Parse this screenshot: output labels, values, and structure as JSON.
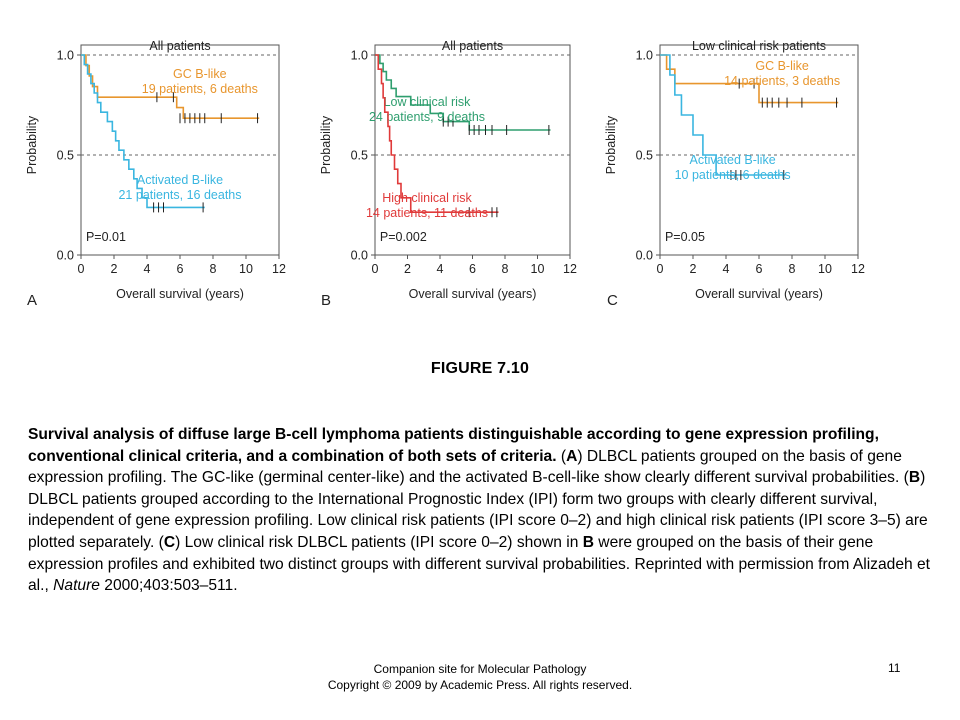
{
  "chart_data": [
    {
      "type": "line",
      "subtype": "kaplan-meier",
      "panel_letter": "A",
      "title": "All patients",
      "xlabel": "Overall survival (years)",
      "ylabel": "Probability",
      "xlim": [
        0,
        12
      ],
      "ylim": [
        0,
        1.0
      ],
      "xticks": [
        "0",
        "2",
        "4",
        "6",
        "8",
        "10",
        "12"
      ],
      "yticks": [
        "0.0",
        "0.5",
        "1.0"
      ],
      "pvalue": "P=0.01",
      "reference_lines_y": [
        0.5,
        1.0
      ],
      "series": [
        {
          "name": "GC B-like",
          "summary": "19 patients, 6 deaths",
          "color": "#E8962E",
          "steps": [
            [
              0,
              1.0
            ],
            [
              0.3,
              0.947
            ],
            [
              0.5,
              0.895
            ],
            [
              0.7,
              0.842
            ],
            [
              1.0,
              0.789
            ],
            [
              5.8,
              0.737
            ],
            [
              6.2,
              0.684
            ]
          ],
          "end_x": 10.8,
          "censored": [
            [
              4.6,
              0.789
            ],
            [
              5.6,
              0.789
            ],
            [
              6.0,
              0.684
            ],
            [
              6.3,
              0.684
            ],
            [
              6.6,
              0.684
            ],
            [
              6.9,
              0.684
            ],
            [
              7.2,
              0.684
            ],
            [
              7.5,
              0.684
            ],
            [
              8.5,
              0.684
            ],
            [
              10.7,
              0.684
            ]
          ]
        },
        {
          "name": "Activated B-like",
          "summary": "21 patients, 16 deaths",
          "color": "#3AB6E0",
          "steps": [
            [
              0,
              1.0
            ],
            [
              0.2,
              0.952
            ],
            [
              0.4,
              0.905
            ],
            [
              0.6,
              0.857
            ],
            [
              0.8,
              0.81
            ],
            [
              1.0,
              0.762
            ],
            [
              1.2,
              0.714
            ],
            [
              1.6,
              0.667
            ],
            [
              1.9,
              0.619
            ],
            [
              2.1,
              0.571
            ],
            [
              2.3,
              0.524
            ],
            [
              2.6,
              0.476
            ],
            [
              2.9,
              0.429
            ],
            [
              3.2,
              0.381
            ],
            [
              3.4,
              0.333
            ],
            [
              3.7,
              0.286
            ],
            [
              4.0,
              0.238
            ]
          ],
          "end_x": 7.5,
          "censored": [
            [
              4.4,
              0.238
            ],
            [
              4.7,
              0.238
            ],
            [
              5.0,
              0.238
            ],
            [
              7.4,
              0.238
            ]
          ]
        }
      ]
    },
    {
      "type": "line",
      "subtype": "kaplan-meier",
      "panel_letter": "B",
      "title": "All patients",
      "xlabel": "Overall survival (years)",
      "ylabel": "Probability",
      "xlim": [
        0,
        12
      ],
      "ylim": [
        0,
        1.0
      ],
      "xticks": [
        "0",
        "2",
        "4",
        "6",
        "8",
        "10",
        "12"
      ],
      "yticks": [
        "0.0",
        "0.5",
        "1.0"
      ],
      "pvalue": "P=0.002",
      "reference_lines_y": [
        0.5,
        1.0
      ],
      "series": [
        {
          "name": "Low clinical risk",
          "summary": "24 patients, 9 deaths",
          "color": "#2E9E6E",
          "steps": [
            [
              0,
              1.0
            ],
            [
              0.3,
              0.958
            ],
            [
              0.5,
              0.917
            ],
            [
              0.7,
              0.875
            ],
            [
              1.0,
              0.833
            ],
            [
              1.3,
              0.792
            ],
            [
              2.2,
              0.75
            ],
            [
              3.4,
              0.708
            ],
            [
              4.2,
              0.667
            ],
            [
              5.8,
              0.625
            ]
          ],
          "end_x": 10.8,
          "censored": [
            [
              4.2,
              0.667
            ],
            [
              4.5,
              0.667
            ],
            [
              4.8,
              0.667
            ],
            [
              5.8,
              0.625
            ],
            [
              6.1,
              0.625
            ],
            [
              6.4,
              0.625
            ],
            [
              6.8,
              0.625
            ],
            [
              7.2,
              0.625
            ],
            [
              8.1,
              0.625
            ],
            [
              10.7,
              0.625
            ]
          ]
        },
        {
          "name": "High clinical risk",
          "summary": "14 patients, 11 deaths",
          "color": "#E03A3A",
          "steps": [
            [
              0,
              1.0
            ],
            [
              0.2,
              0.929
            ],
            [
              0.4,
              0.857
            ],
            [
              0.5,
              0.786
            ],
            [
              0.6,
              0.714
            ],
            [
              0.8,
              0.643
            ],
            [
              0.9,
              0.571
            ],
            [
              1.0,
              0.5
            ],
            [
              1.2,
              0.429
            ],
            [
              1.4,
              0.357
            ],
            [
              1.6,
              0.286
            ],
            [
              2.2,
              0.214
            ]
          ],
          "end_x": 7.6,
          "censored": [
            [
              5.8,
              0.214
            ],
            [
              7.2,
              0.214
            ],
            [
              7.5,
              0.214
            ]
          ]
        }
      ]
    },
    {
      "type": "line",
      "subtype": "kaplan-meier",
      "panel_letter": "C",
      "title": "Low clinical risk patients",
      "xlabel": "Overall survival (years)",
      "ylabel": "Probability",
      "xlim": [
        0,
        12
      ],
      "ylim": [
        0,
        1.0
      ],
      "xticks": [
        "0",
        "2",
        "4",
        "6",
        "8",
        "10",
        "12"
      ],
      "yticks": [
        "0.0",
        "0.5",
        "1.0"
      ],
      "pvalue": "P=0.05",
      "reference_lines_y": [
        0.5,
        1.0
      ],
      "series": [
        {
          "name": "GC B-like",
          "summary": "14 patients, 3 deaths",
          "color": "#E8962E",
          "steps": [
            [
              0,
              1.0
            ],
            [
              0.4,
              0.929
            ],
            [
              0.9,
              0.857
            ],
            [
              6.0,
              0.762
            ]
          ],
          "end_x": 10.8,
          "censored": [
            [
              4.8,
              0.857
            ],
            [
              5.7,
              0.857
            ],
            [
              6.2,
              0.762
            ],
            [
              6.5,
              0.762
            ],
            [
              6.8,
              0.762
            ],
            [
              7.2,
              0.762
            ],
            [
              7.7,
              0.762
            ],
            [
              8.6,
              0.762
            ],
            [
              10.7,
              0.762
            ]
          ]
        },
        {
          "name": "Activated B-like",
          "summary": "10 patients, 6 deaths",
          "color": "#3AB6E0",
          "steps": [
            [
              0,
              1.0
            ],
            [
              0.6,
              0.9
            ],
            [
              0.9,
              0.8
            ],
            [
              1.3,
              0.7
            ],
            [
              2.0,
              0.6
            ],
            [
              2.6,
              0.5
            ],
            [
              3.4,
              0.4
            ]
          ],
          "end_x": 7.6,
          "censored": [
            [
              4.3,
              0.4
            ],
            [
              4.6,
              0.4
            ],
            [
              4.9,
              0.4
            ],
            [
              7.5,
              0.4
            ]
          ]
        }
      ]
    }
  ],
  "figure_title": "FIGURE 7.10",
  "caption": {
    "bold_lead": "Survival analysis of diffuse large B-cell lymphoma patients distinguishable according to gene expression profiling, conventional clinical criteria, and a combination of both sets of criteria.",
    "a_open": " (",
    "a_letter": "A",
    "a_text": ") DLBCL patients grouped on the basis of gene expression profiling. The GC-like (germinal center-like) and the activated B-cell-like show clearly different survival probabilities. (",
    "b_letter": "B",
    "b_text": ") DLBCL patients grouped according to the International Prognostic Index (IPI) form two groups with clearly different survival, independent of gene expression profiling. Low clinical risk patients (IPI score 0–2) and high clinical risk patients (IPI score 3–5) are plotted separately. (",
    "c_letter": "C",
    "c_text": ") Low clinical risk DLBCL patients (IPI score 0–2) shown in ",
    "b_ref": "B",
    "c_text2": " were grouped on the basis of their gene expression profiles and exhibited two distinct groups with different survival probabilities. Reprinted with permission from Alizadeh et al., ",
    "journal": "Nature",
    "citation_tail": " 2000;403:503–511."
  },
  "footer": {
    "line1": "Companion site for Molecular Pathology",
    "line2": "Copyright © 2009 by Academic Press. All rights reserved.",
    "page_number": "11"
  }
}
